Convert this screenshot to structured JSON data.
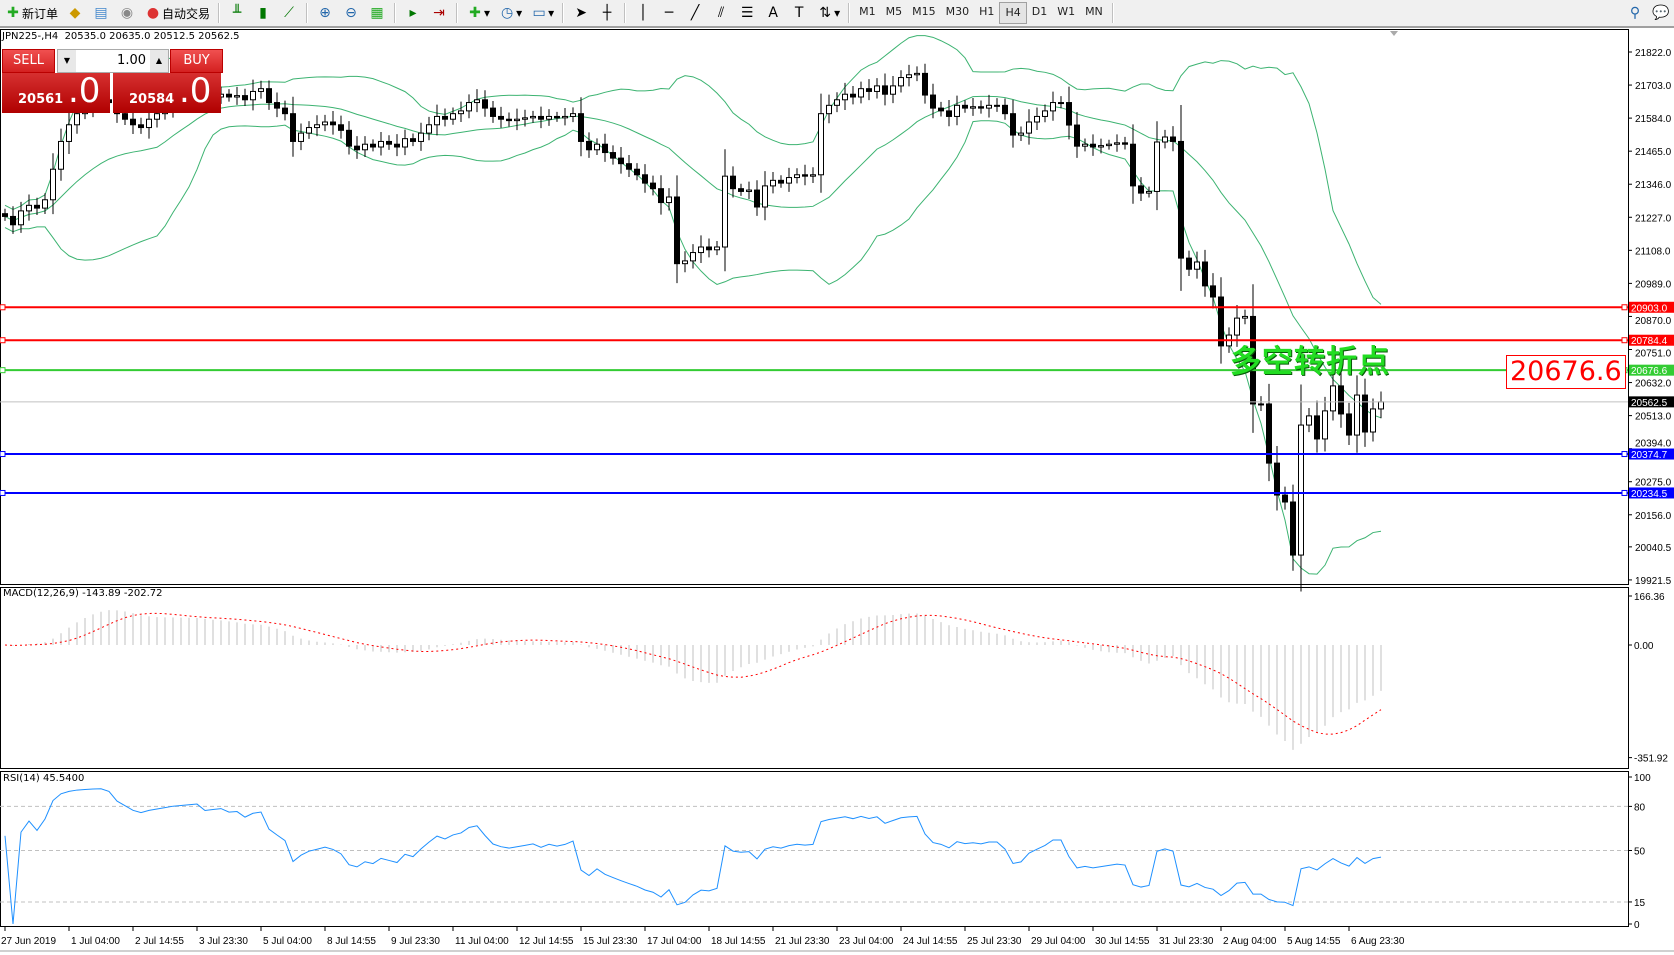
{
  "toolbar": {
    "new_order": "新订单",
    "auto_trading": "自动交易",
    "timeframes": [
      "M1",
      "M5",
      "M15",
      "M30",
      "H1",
      "H4",
      "D1",
      "W1",
      "MN"
    ],
    "active_timeframe": "H4",
    "icons": [
      "new-order-icon",
      "market-watch-icon",
      "navigator-icon",
      "signals-icon",
      "auto-trading-icon",
      "bar-chart-icon",
      "candlestick-icon",
      "line-chart-icon",
      "zoom-in-icon",
      "zoom-out-icon",
      "tile-windows-icon",
      "autoscroll-icon",
      "chart-shift-icon",
      "indicators-icon",
      "periods-icon",
      "templates-icon",
      "cursor-icon",
      "crosshair-icon",
      "vertical-line-icon",
      "horizontal-line-icon",
      "trendline-icon",
      "equidistant-channel-icon",
      "fibonacci-icon",
      "text-icon",
      "text-label-icon",
      "arrows-icon",
      "search-icon",
      "chat-icon"
    ]
  },
  "chart": {
    "symbol_info": "JPN225-,H4  20535.0 20635.0 20512.5 20562.5",
    "trade_panel": {
      "sell_label": "SELL",
      "buy_label": "BUY",
      "lot": "1.00",
      "sell_price_main": "20561",
      "sell_price_big": ".0",
      "buy_price_main": "20584",
      "buy_price_big": ".0"
    },
    "annotation": "多空转折点",
    "big_price_label": "20676.6",
    "price_axis": [
      "21822.0",
      "21703.0",
      "21584.0",
      "21465.0",
      "21346.0",
      "21227.0",
      "21108.0",
      "20989.0",
      "20870.0",
      "20751.0",
      "20632.0",
      "20513.0",
      "20394.0",
      "20275.0",
      "20156.0",
      "20040.5",
      "19921.5"
    ],
    "levels": [
      {
        "price": 20903.0,
        "label": "20903.0",
        "color": "#ff0000"
      },
      {
        "price": 20784.4,
        "label": "20784.4",
        "color": "#ff0000"
      },
      {
        "price": 20676.6,
        "label": "20676.6",
        "color": "#33cc33"
      },
      {
        "price": 20374.7,
        "label": "20374.7",
        "color": "#0000ff"
      },
      {
        "price": 20234.5,
        "label": "20234.5",
        "color": "#0000ff"
      }
    ],
    "bid": {
      "price": 20562.5,
      "label": "20562.5"
    },
    "time_axis": [
      "27 Jun 2019",
      "1 Jul 04:00",
      "2 Jul 14:55",
      "3 Jul 23:30",
      "5 Jul 04:00",
      "8 Jul 14:55",
      "9 Jul 23:30",
      "11 Jul 04:00",
      "12 Jul 14:55",
      "15 Jul 23:30",
      "17 Jul 04:00",
      "18 Jul 14:55",
      "21 Jul 23:30",
      "23 Jul 04:00",
      "24 Jul 14:55",
      "25 Jul 23:30",
      "29 Jul 04:00",
      "30 Jul 14:55",
      "31 Jul 23:30",
      "2 Aug 04:00",
      "5 Aug 14:55",
      "6 Aug 23:30"
    ],
    "closes": [
      21230,
      21200,
      21250,
      21270,
      21260,
      21290,
      21400,
      21500,
      21560,
      21600,
      21620,
      21640,
      21650,
      21640,
      21600,
      21580,
      21560,
      21550,
      21580,
      21600,
      21620,
      21640,
      21650,
      21660,
      21670,
      21650,
      21660,
      21670,
      21660,
      21665,
      21650,
      21680,
      21690,
      21640,
      21620,
      21600,
      21500,
      21530,
      21550,
      21560,
      21570,
      21560,
      21540,
      21483,
      21470,
      21490,
      21480,
      21500,
      21490,
      21480,
      21510,
      21500,
      21530,
      21560,
      21590,
      21580,
      21600,
      21610,
      21640,
      21650,
      21620,
      21590,
      21580,
      21575,
      21580,
      21585,
      21590,
      21580,
      21590,
      21585,
      21590,
      21600,
      21500,
      21470,
      21490,
      21460,
      21440,
      21420,
      21400,
      21380,
      21350,
      21330,
      21280,
      21300,
      21060,
      21070,
      21100,
      21120,
      21110,
      21120,
      21375,
      21330,
      21320,
      21325,
      21264,
      21340,
      21360,
      21350,
      21370,
      21380,
      21375,
      21380,
      21600,
      21630,
      21650,
      21670,
      21660,
      21690,
      21680,
      21700,
      21670,
      21700,
      21730,
      21740,
      21745,
      21667,
      21620,
      21610,
      21590,
      21630,
      21620,
      21625,
      21620,
      21630,
      21630,
      21600,
      21523,
      21530,
      21570,
      21590,
      21610,
      21640,
      21640,
      21559,
      21483,
      21490,
      21480,
      21485,
      21490,
      21495,
      21490,
      21340,
      21314,
      21320,
      21498,
      21516,
      21500,
      21080,
      21040,
      21066,
      20980,
      20940,
      20764,
      20803,
      20864,
      20870,
      20555,
      20555,
      20342,
      20227,
      20202,
      20011,
      20479,
      20512,
      20429,
      20530,
      20620,
      20519,
      20443,
      20587,
      20454,
      20537,
      20562.5
    ],
    "bollinger_color": "#3cb371"
  },
  "macd": {
    "label": "MACD(12,26,9) -143.89 -202.72",
    "axis": [
      "166.36",
      "0.00",
      "-351.92"
    ],
    "histogram_color": "#c0c0c0",
    "signal_color": "#ff0000"
  },
  "rsi": {
    "label": "RSI(14) 45.5400",
    "axis": [
      "100",
      "80",
      "50",
      "15",
      "0"
    ],
    "levels": [
      80,
      50,
      15
    ],
    "line_color": "#1e90ff"
  }
}
